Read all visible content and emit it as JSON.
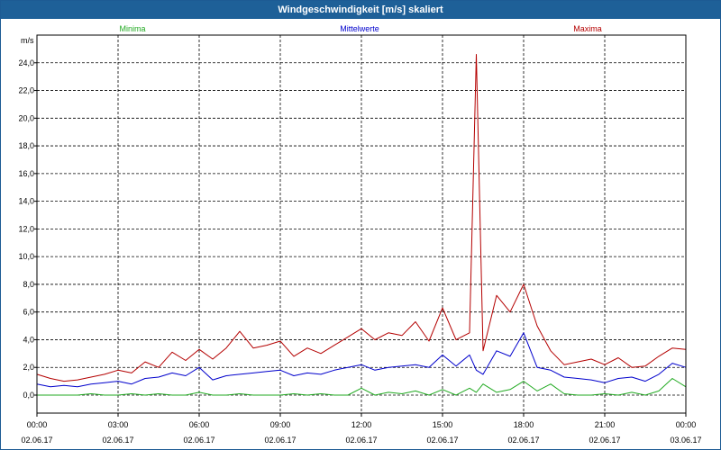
{
  "window": {
    "title": "Windgeschwindigkeit [m/s] skaliert"
  },
  "colors": {
    "minima": "#22aa22",
    "mittelwerte": "#0000cc",
    "maxima": "#b40000",
    "titlebar": "#1e6098",
    "grid": "#000000"
  },
  "chart_data": {
    "type": "line",
    "title": "Windgeschwindigkeit [m/s] skaliert",
    "ylabel": "m/s",
    "xlabel": "",
    "ylim": [
      -1.3,
      26
    ],
    "xlim": [
      0,
      24
    ],
    "yticks": [
      {
        "value": 0,
        "label": "0,0"
      },
      {
        "value": 2,
        "label": "2,0"
      },
      {
        "value": 4,
        "label": "4,0"
      },
      {
        "value": 6,
        "label": "6,0"
      },
      {
        "value": 8,
        "label": "8,0"
      },
      {
        "value": 10,
        "label": "10,0"
      },
      {
        "value": 12,
        "label": "12,0"
      },
      {
        "value": 14,
        "label": "14,0"
      },
      {
        "value": 16,
        "label": "16,0"
      },
      {
        "value": 18,
        "label": "18,0"
      },
      {
        "value": 20,
        "label": "20,0"
      },
      {
        "value": 22,
        "label": "22,0"
      },
      {
        "value": 24,
        "label": "24,0"
      }
    ],
    "xticks": [
      {
        "value": 0,
        "time": "00:00",
        "date": "02.06.17"
      },
      {
        "value": 3,
        "time": "03:00",
        "date": "02.06.17"
      },
      {
        "value": 6,
        "time": "06:00",
        "date": "02.06.17"
      },
      {
        "value": 9,
        "time": "09:00",
        "date": "02.06.17"
      },
      {
        "value": 12,
        "time": "12:00",
        "date": "02.06.17"
      },
      {
        "value": 15,
        "time": "15:00",
        "date": "02.06.17"
      },
      {
        "value": 18,
        "time": "18:00",
        "date": "02.06.17"
      },
      {
        "value": 21,
        "time": "21:00",
        "date": "02.06.17"
      },
      {
        "value": 24,
        "time": "00:00",
        "date": "03.06.17"
      }
    ],
    "grid": true,
    "legend_position": "top",
    "x": [
      0,
      0.5,
      1,
      1.5,
      2,
      2.5,
      3,
      3.5,
      4,
      4.5,
      5,
      5.5,
      6,
      6.5,
      7,
      7.5,
      8,
      8.5,
      9,
      9.5,
      10,
      10.5,
      11,
      11.5,
      12,
      12.5,
      13,
      13.5,
      14,
      14.5,
      15,
      15.5,
      16,
      16.25,
      16.5,
      17,
      17.5,
      18,
      18.5,
      19,
      19.5,
      20,
      20.5,
      21,
      21.5,
      22,
      22.5,
      23,
      23.5,
      24
    ],
    "series": [
      {
        "name": "Minima",
        "color": "#22aa22",
        "values": [
          0,
          0,
          0,
          0,
          0.1,
          0,
          0,
          0.1,
          0,
          0.1,
          0,
          0,
          0.2,
          0,
          0,
          0.1,
          0,
          0,
          0,
          0.1,
          0,
          0.1,
          0,
          0,
          0.5,
          0,
          0.2,
          0.1,
          0.3,
          0,
          0.4,
          0,
          0.5,
          0.2,
          0.8,
          0.2,
          0.4,
          1,
          0.3,
          0.8,
          0.1,
          0,
          0,
          0.1,
          0,
          0.2,
          0,
          0.3,
          1.2,
          0.6
        ]
      },
      {
        "name": "Mittelwerte",
        "color": "#0000cc",
        "values": [
          0.8,
          0.6,
          0.7,
          0.6,
          0.8,
          0.9,
          1,
          0.8,
          1.2,
          1.3,
          1.6,
          1.4,
          2,
          1.1,
          1.4,
          1.5,
          1.6,
          1.7,
          1.8,
          1.4,
          1.6,
          1.5,
          1.8,
          2,
          2.2,
          1.8,
          2,
          2.1,
          2.2,
          2,
          2.9,
          2.1,
          2.9,
          1.8,
          1.5,
          3.2,
          2.8,
          4.5,
          2,
          1.8,
          1.3,
          1.2,
          1.1,
          0.9,
          1.2,
          1.3,
          1,
          1.5,
          2.3,
          2
        ]
      },
      {
        "name": "Maxima",
        "color": "#b40000",
        "values": [
          1.5,
          1.2,
          1,
          1.1,
          1.3,
          1.5,
          1.8,
          1.6,
          2.4,
          2,
          3.1,
          2.5,
          3.3,
          2.6,
          3.4,
          4.6,
          3.4,
          3.6,
          3.9,
          2.8,
          3.4,
          3,
          3.6,
          4.2,
          4.8,
          4,
          4.5,
          4.3,
          5.3,
          3.9,
          6.3,
          4,
          4.5,
          24.6,
          3.2,
          7.2,
          6,
          8,
          5,
          3.2,
          2.2,
          2.4,
          2.6,
          2.2,
          2.7,
          2,
          2.1,
          2.8,
          3.4,
          3.3
        ]
      }
    ]
  }
}
